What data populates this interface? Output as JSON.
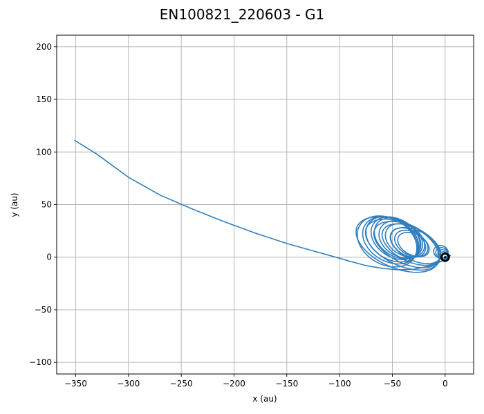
{
  "chart_data": {
    "type": "line",
    "title": "EN100821_220603 - G1",
    "xlabel": "x (au)",
    "ylabel": "y (au)",
    "xlim": [
      -368,
      27
    ],
    "ylim": [
      -111,
      211
    ],
    "xticks": [
      -350,
      -300,
      -250,
      -200,
      -150,
      -100,
      -50,
      0
    ],
    "yticks": [
      -100,
      -50,
      0,
      50,
      100,
      150,
      200
    ],
    "grid": true,
    "colors": {
      "orbit": "#2f7fbf",
      "central_body": "#000000"
    },
    "central_body": {
      "x": 0,
      "y": 0,
      "radius_au": 3.5
    },
    "series": [
      {
        "x": [
          -351,
          -330,
          -300,
          -270,
          -240,
          -210,
          -180,
          -150,
          -125,
          -100,
          -90,
          -75,
          -60,
          -45,
          -30,
          -15,
          -5,
          2,
          5,
          3
        ],
        "y": [
          111,
          98,
          76,
          59,
          46,
          34,
          23,
          13,
          6,
          -1,
          -4,
          -8,
          -10.5,
          -12,
          -11.5,
          -8.5,
          -4.5,
          -1,
          1.5,
          3
        ]
      }
    ],
    "loops": [
      {
        "center": [
          -55,
          15
        ],
        "a": 30,
        "b": 22,
        "tilt_deg": -30
      },
      {
        "center": [
          -52,
          16
        ],
        "a": 28,
        "b": 20,
        "tilt_deg": -31
      },
      {
        "center": [
          -50,
          17
        ],
        "a": 27,
        "b": 19,
        "tilt_deg": -32
      },
      {
        "center": [
          -47,
          18
        ],
        "a": 25,
        "b": 18,
        "tilt_deg": -33
      },
      {
        "center": [
          -45,
          18
        ],
        "a": 24,
        "b": 17,
        "tilt_deg": -34
      },
      {
        "center": [
          -42,
          17
        ],
        "a": 22,
        "b": 16,
        "tilt_deg": -30
      },
      {
        "center": [
          -38,
          16
        ],
        "a": 20,
        "b": 14,
        "tilt_deg": -31
      },
      {
        "center": [
          -35,
          14
        ],
        "a": 18,
        "b": 12,
        "tilt_deg": -32
      },
      {
        "center": [
          -32,
          13
        ],
        "a": 17,
        "b": 11,
        "tilt_deg": -29
      },
      {
        "center": [
          -30,
          12
        ],
        "a": 16,
        "b": 10,
        "tilt_deg": -28
      },
      {
        "center": [
          -45,
          12
        ],
        "a": 42,
        "b": 22,
        "tilt_deg": -24
      },
      {
        "center": [
          -40,
          12
        ],
        "a": 38,
        "b": 20,
        "tilt_deg": -25
      },
      {
        "center": [
          -36,
          12
        ],
        "a": 34,
        "b": 18,
        "tilt_deg": -26
      },
      {
        "center": [
          -32,
          12
        ],
        "a": 30,
        "b": 16,
        "tilt_deg": -27
      },
      {
        "center": [
          -28,
          11
        ],
        "a": 26,
        "b": 14,
        "tilt_deg": -27
      },
      {
        "center": [
          -4,
          5
        ],
        "a": 7,
        "b": 6,
        "tilt_deg": -20
      },
      {
        "center": [
          -3,
          4
        ],
        "a": 6,
        "b": 5,
        "tilt_deg": -20
      },
      {
        "center": [
          -2,
          3
        ],
        "a": 5,
        "b": 4,
        "tilt_deg": -20
      },
      {
        "center": [
          -1,
          2
        ],
        "a": 4,
        "b": 3,
        "tilt_deg": -20
      }
    ]
  }
}
